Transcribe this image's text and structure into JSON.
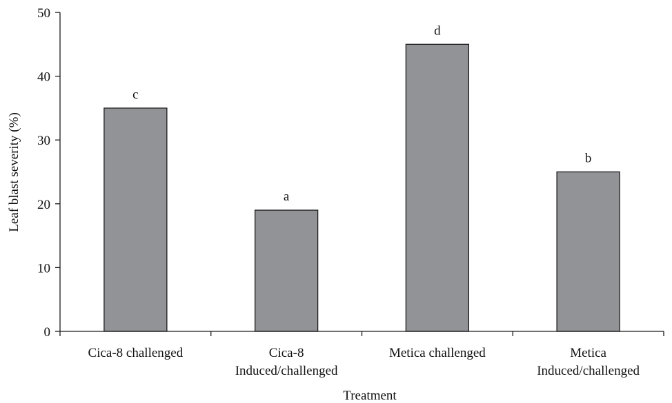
{
  "chart_data": {
    "type": "bar",
    "title": "",
    "xlabel": "Treatment",
    "ylabel": "Leaf blast severity (%)",
    "ylim": [
      0,
      50
    ],
    "yticks": [
      0,
      10,
      20,
      30,
      40,
      50
    ],
    "grid": false,
    "categories": [
      [
        "Cica-8 challenged"
      ],
      [
        "Cica-8",
        "Induced/challenged"
      ],
      [
        "Metica challenged"
      ],
      [
        "Metica",
        "Induced/challenged"
      ]
    ],
    "values": [
      35,
      19,
      45,
      25
    ],
    "data_labels": [
      "c",
      "a",
      "d",
      "b"
    ],
    "bar_color": "#929397",
    "bar_edge_color": "#1a1a1a"
  }
}
